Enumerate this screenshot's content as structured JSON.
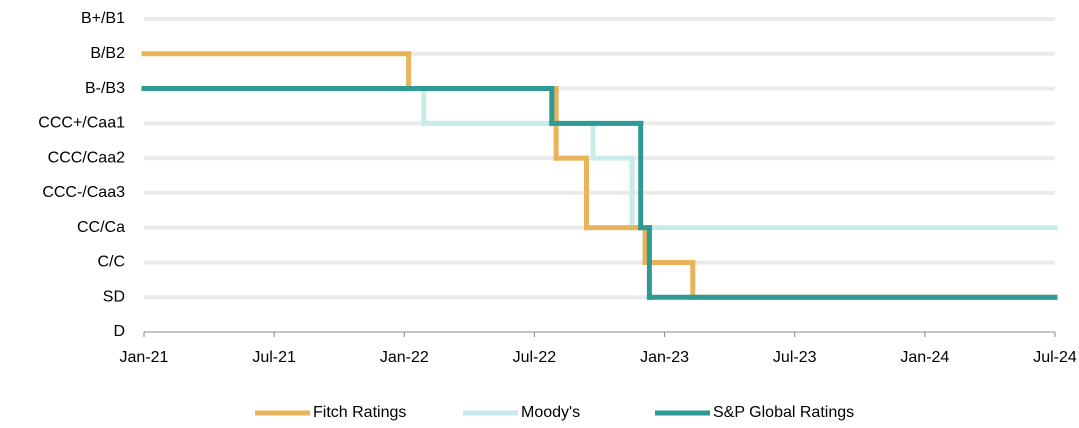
{
  "chart_data": {
    "type": "step",
    "xlim": [
      0,
      42
    ],
    "xticks": [
      {
        "value": 0,
        "label": "Jan-21"
      },
      {
        "value": 6,
        "label": "Jul-21"
      },
      {
        "value": 12,
        "label": "Jan-22"
      },
      {
        "value": 18,
        "label": "Jul-22"
      },
      {
        "value": 24,
        "label": "Jan-23"
      },
      {
        "value": 30,
        "label": "Jul-23"
      },
      {
        "value": 36,
        "label": "Jan-24"
      },
      {
        "value": 42,
        "label": "Jul-24"
      }
    ],
    "ylim": [
      0,
      9
    ],
    "yticks": [
      {
        "value": 0,
        "label": "D"
      },
      {
        "value": 1,
        "label": "SD"
      },
      {
        "value": 2,
        "label": "C/C"
      },
      {
        "value": 3,
        "label": "CC/Ca"
      },
      {
        "value": 4,
        "label": "CCC-/Caa3"
      },
      {
        "value": 5,
        "label": "CCC/Caa2"
      },
      {
        "value": 6,
        "label": "CCC+/Caa1"
      },
      {
        "value": 7,
        "label": "B-/B3"
      },
      {
        "value": 8,
        "label": "B/B2"
      },
      {
        "value": 9,
        "label": "B+/B1"
      }
    ],
    "grid": true,
    "series": [
      {
        "name": "Moody's",
        "color": "#c9ecea",
        "x": [
          0,
          12.9,
          20.7,
          22.5
        ],
        "values": [
          7,
          6,
          5,
          3
        ]
      },
      {
        "name": "Fitch Ratings",
        "color": "#e8b35a",
        "x": [
          0,
          12.2,
          19.0,
          20.4,
          23.1,
          25.3
        ],
        "values": [
          8,
          7,
          5,
          3,
          2,
          1
        ]
      },
      {
        "name": "S&P Global Ratings",
        "color": "#2e9a94",
        "x": [
          0,
          18.8,
          22.9,
          23.3
        ],
        "values": [
          7,
          6,
          3,
          1
        ]
      }
    ],
    "legend_order": [
      "Fitch Ratings",
      "Moody's",
      "S&P Global Ratings"
    ]
  }
}
